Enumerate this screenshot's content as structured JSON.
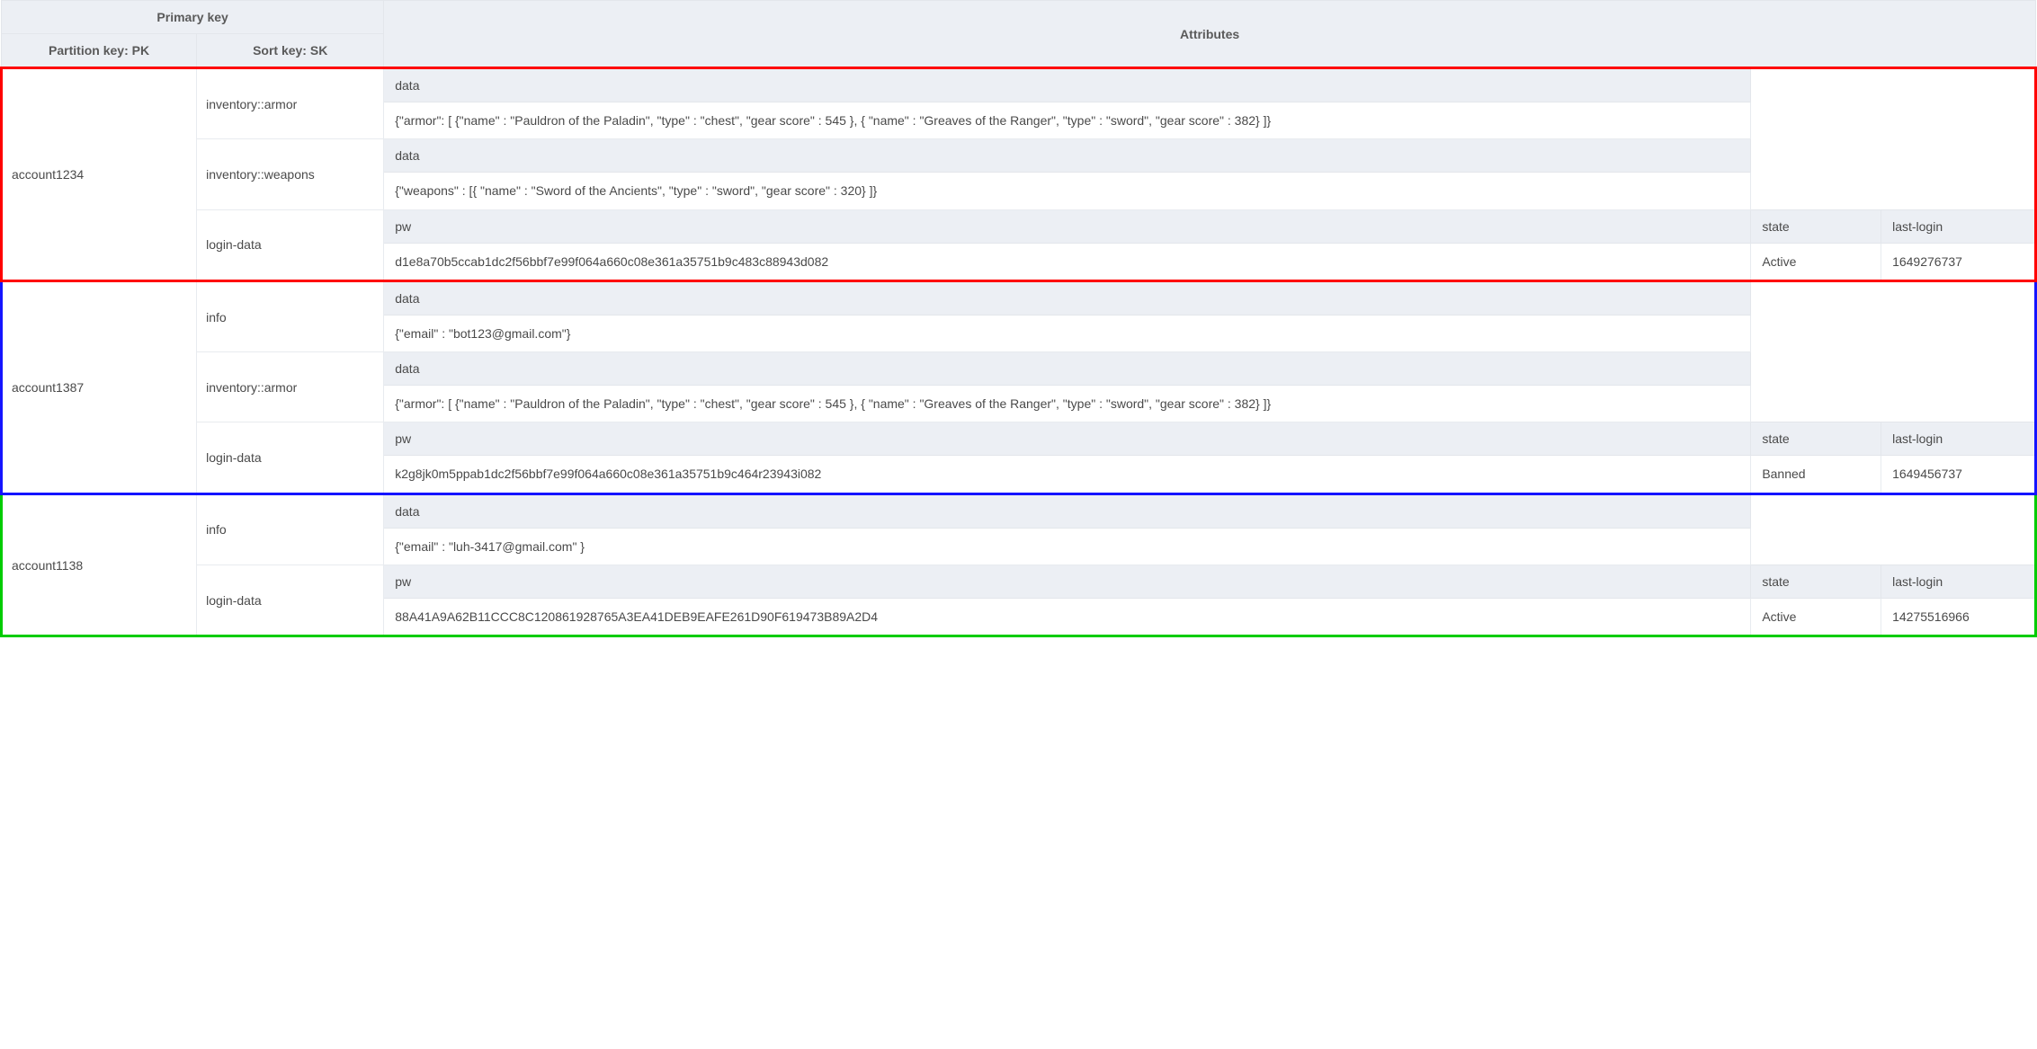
{
  "colors": {
    "header_bg": "#eceff4",
    "border": "#e3e6eb",
    "cell_border": "#e8ebef",
    "text": "#4a4a4a",
    "group_red": "#ff0000",
    "group_blue": "#1414ff",
    "group_green": "#00cc00",
    "background": "#ffffff"
  },
  "header": {
    "primary_key": "Primary key",
    "attributes": "Attributes",
    "pk_label": "Partition key: PK",
    "sk_label": "Sort key: SK"
  },
  "attr_labels": {
    "data": "data",
    "pw": "pw",
    "state": "state",
    "last_login": "last-login"
  },
  "groups": [
    {
      "color": "red",
      "pk": "account1234",
      "items": [
        {
          "sk": "inventory::armor",
          "cells": [
            {
              "span": 3,
              "header": "data",
              "value": "{\"armor\": [ {\"name\" : \"Pauldron of the Paladin\", \"type\" : \"chest\", \"gear score\" : 545 }, { \"name\" : \"Greaves of the Ranger\", \"type\" : \"sword\", \"gear score\" : 382} ]}"
            }
          ],
          "trailing_empty": true
        },
        {
          "sk": "inventory::weapons",
          "cells": [
            {
              "span": 3,
              "header": "data",
              "value": "{\"weapons\" : [{ \"name\" : \"Sword of the Ancients\", \"type\" : \"sword\", \"gear score\" : 320} ]}"
            }
          ],
          "trailing_empty": true
        },
        {
          "sk": "login-data",
          "cells": [
            {
              "span": 1,
              "header": "pw",
              "value": "d1e8a70b5ccab1dc2f56bbf7e99f064a660c08e361a35751b9c483c88943d082"
            },
            {
              "span": 1,
              "header": "state",
              "value": "Active"
            },
            {
              "span": 1,
              "header": "last-login",
              "value": "1649276737"
            }
          ]
        }
      ]
    },
    {
      "color": "blue",
      "pk": "account1387",
      "items": [
        {
          "sk": "info",
          "cells": [
            {
              "span": 3,
              "header": "data",
              "value": "{\"email\" : \"bot123@gmail.com\"}"
            }
          ],
          "trailing_empty": true
        },
        {
          "sk": "inventory::armor",
          "cells": [
            {
              "span": 3,
              "header": "data",
              "value": "{\"armor\": [ {\"name\" : \"Pauldron of the Paladin\", \"type\" : \"chest\", \"gear score\" : 545 }, { \"name\" : \"Greaves of the Ranger\", \"type\" : \"sword\", \"gear score\" : 382} ]}"
            }
          ],
          "trailing_empty": true
        },
        {
          "sk": "login-data",
          "cells": [
            {
              "span": 1,
              "header": "pw",
              "value": "k2g8jk0m5ppab1dc2f56bbf7e99f064a660c08e361a35751b9c464r23943i082"
            },
            {
              "span": 1,
              "header": "state",
              "value": "Banned"
            },
            {
              "span": 1,
              "header": "last-login",
              "value": "1649456737"
            }
          ]
        }
      ]
    },
    {
      "color": "green",
      "pk": "account1138",
      "items": [
        {
          "sk": "info",
          "cells": [
            {
              "span": 3,
              "header": "data",
              "value": "{\"email\" : \"luh-3417@gmail.com\" }"
            }
          ],
          "trailing_empty": true
        },
        {
          "sk": "login-data",
          "cells": [
            {
              "span": 1,
              "header": "pw",
              "value": "88A41A9A62B11CCC8C120861928765A3EA41DEB9EAFE261D90F619473B89A2D4"
            },
            {
              "span": 1,
              "header": "state",
              "value": "Active"
            },
            {
              "span": 1,
              "header": "last-login",
              "value": "14275516966"
            }
          ]
        }
      ]
    }
  ]
}
